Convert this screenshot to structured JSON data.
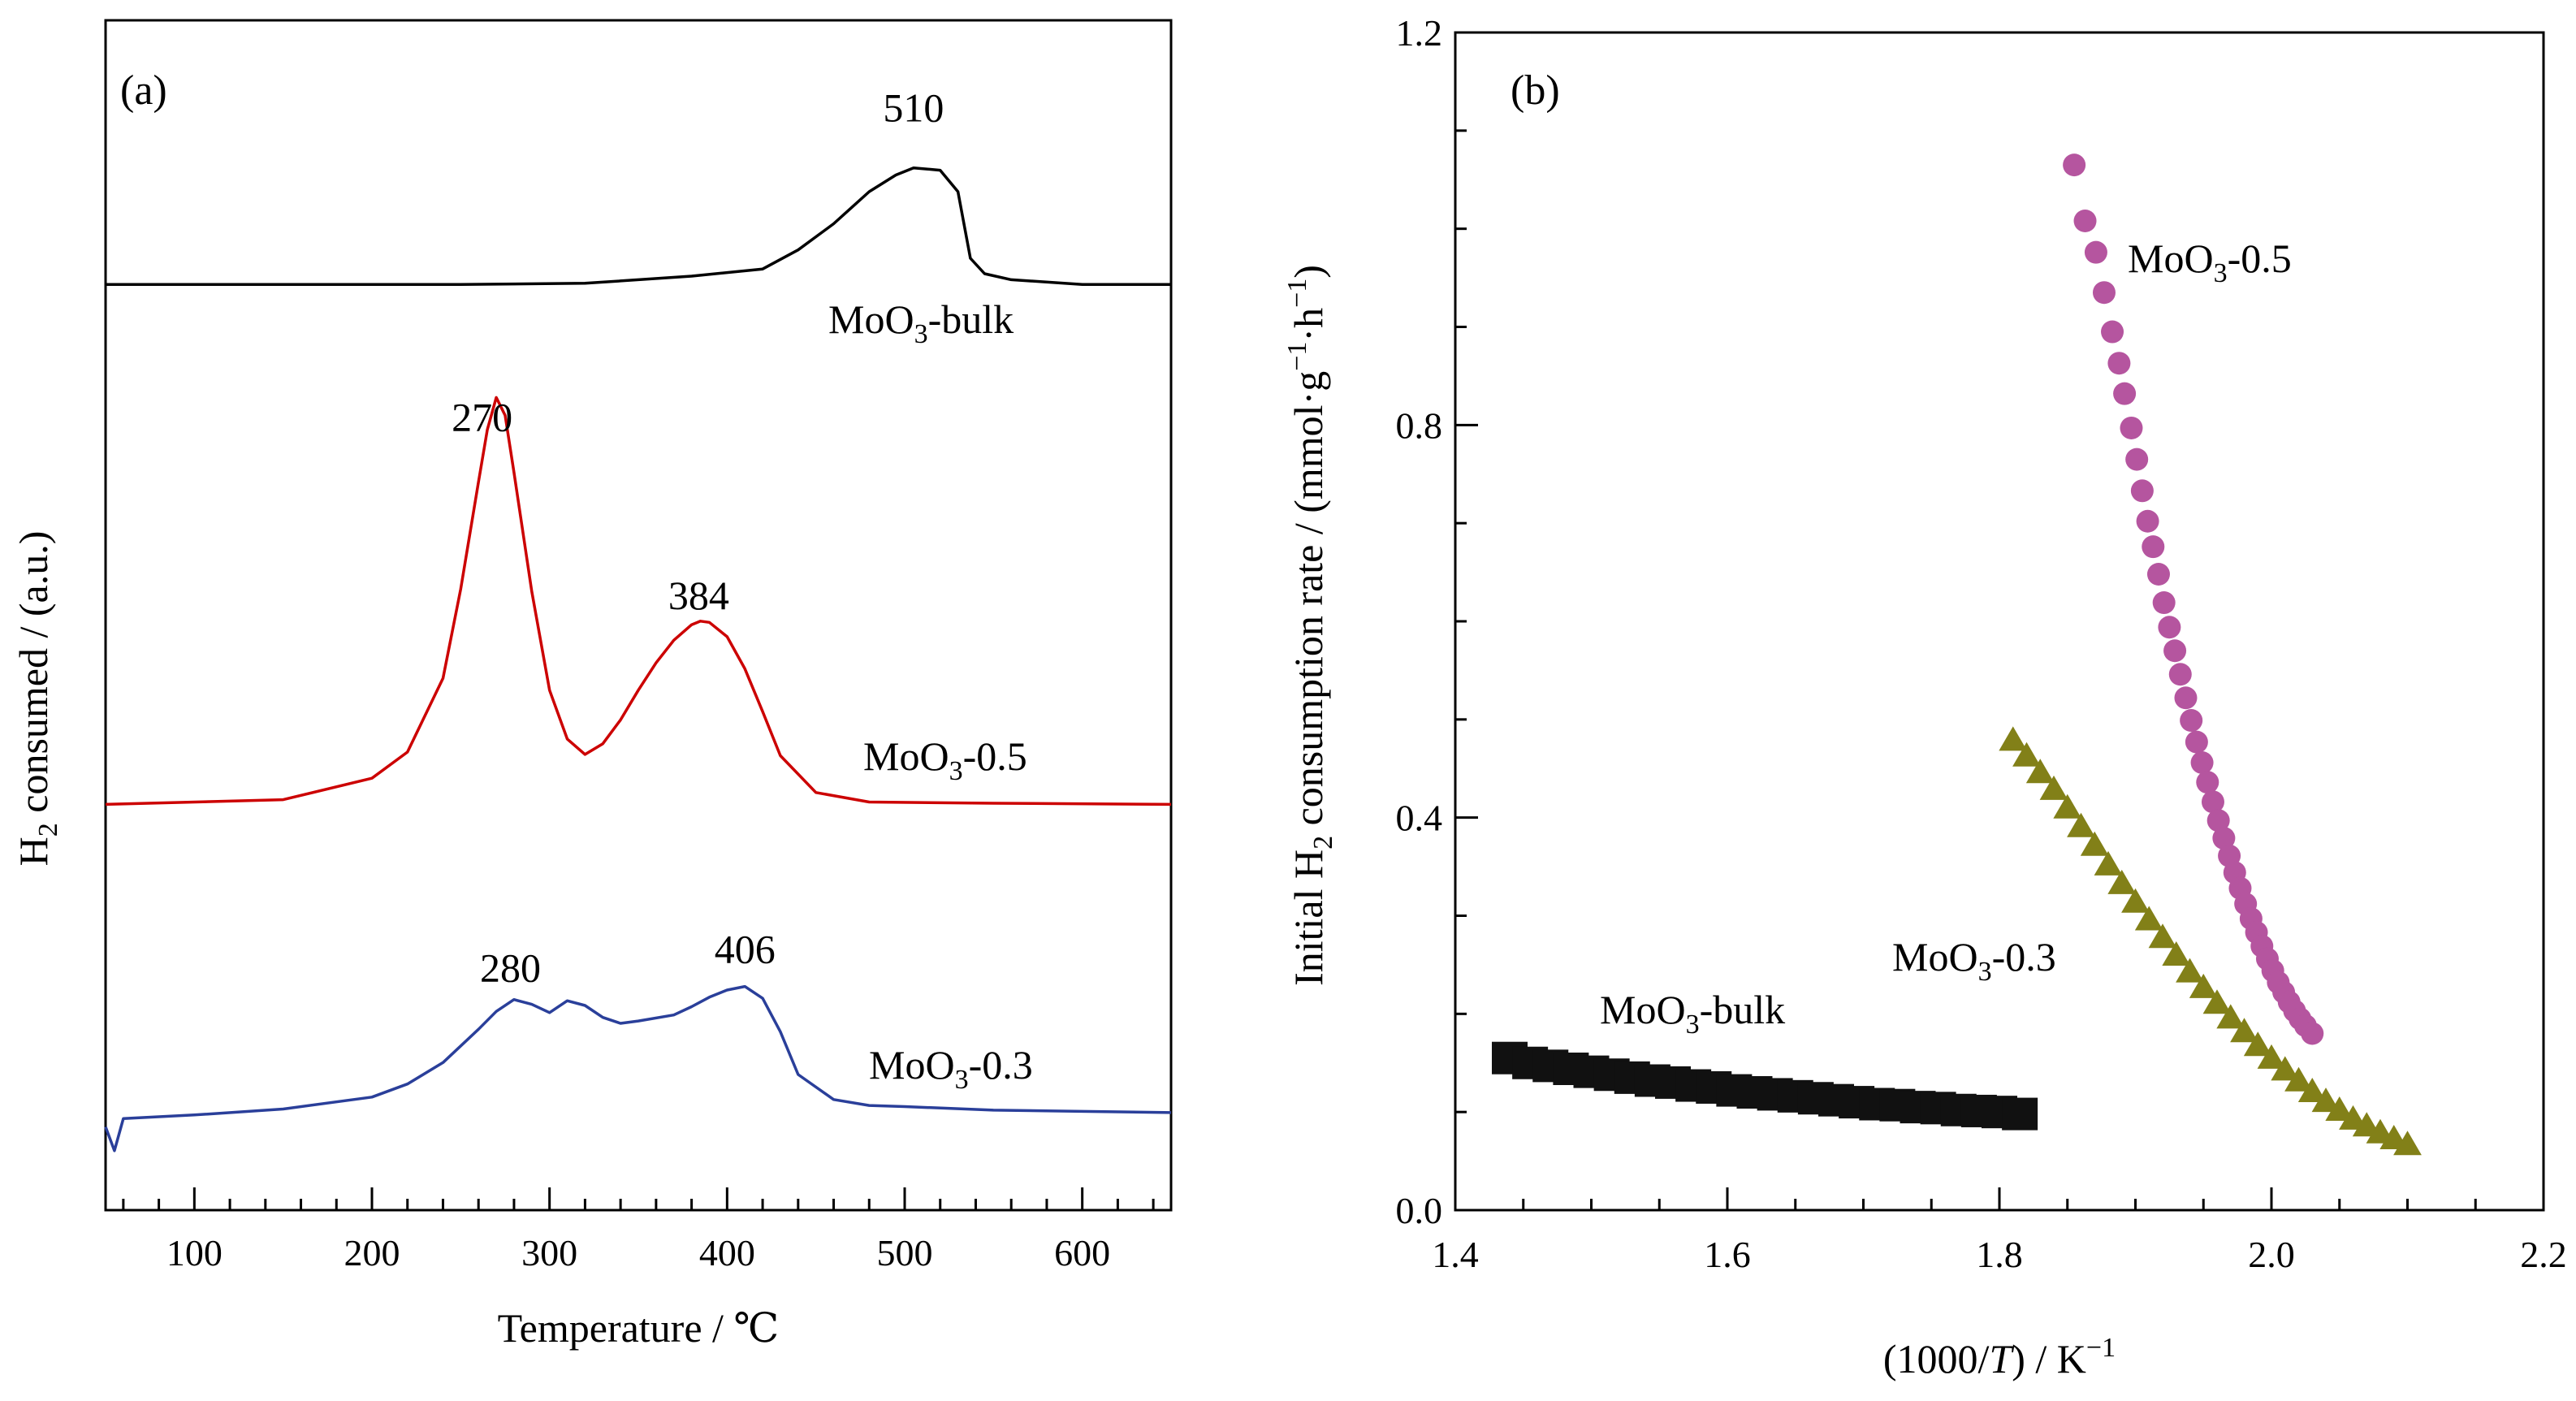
{
  "colors": {
    "bulk": "#000000",
    "p05": "#cc0000",
    "p03": "#2a3f9a",
    "p05_marker": "#b5559f",
    "p03_marker": "#828018",
    "bulk_marker": "#111111"
  },
  "chart_data": [
    {
      "type": "line",
      "panel": "(a)",
      "xlabel": "Temperature / ℃",
      "ylabel_main": "H",
      "ylabel_sub": "2",
      "ylabel_rest": " consumed / (a.u.)",
      "xlim": [
        50,
        650
      ],
      "x_ticks": [
        100,
        200,
        300,
        400,
        500,
        600
      ],
      "x_tick_labels": [
        "100",
        "200",
        "300",
        "400",
        "500",
        "600"
      ],
      "ylim": [
        0,
        1
      ],
      "y_ticks_shown": false,
      "series": [
        {
          "key": "bulk",
          "label_main": "MoO",
          "label_sub": "3",
          "label_rest": "-bulk",
          "baseline": 0.778,
          "x": [
            50,
            150,
            250,
            320,
            380,
            420,
            440,
            460,
            480,
            495,
            505,
            520,
            530,
            537,
            545,
            560,
            600,
            650
          ],
          "y": [
            0.778,
            0.778,
            0.778,
            0.779,
            0.785,
            0.791,
            0.807,
            0.829,
            0.856,
            0.87,
            0.876,
            0.874,
            0.856,
            0.8,
            0.787,
            0.782,
            0.778,
            0.778
          ]
        },
        {
          "key": "p05",
          "label_main": "MoO",
          "label_sub": "3",
          "label_rest": "-0.5",
          "baseline": 0.341,
          "x": [
            50,
            150,
            200,
            220,
            240,
            250,
            260,
            265,
            270,
            275,
            280,
            290,
            300,
            310,
            320,
            330,
            340,
            350,
            360,
            370,
            380,
            385,
            390,
            400,
            410,
            420,
            430,
            450,
            480,
            550,
            650
          ],
          "y": [
            0.341,
            0.345,
            0.363,
            0.385,
            0.447,
            0.522,
            0.612,
            0.656,
            0.683,
            0.668,
            0.62,
            0.52,
            0.437,
            0.396,
            0.383,
            0.392,
            0.412,
            0.437,
            0.46,
            0.479,
            0.492,
            0.495,
            0.494,
            0.482,
            0.455,
            0.419,
            0.382,
            0.351,
            0.343,
            0.342,
            0.341
          ]
        },
        {
          "key": "p03",
          "label_main": "MoO",
          "label_sub": "3",
          "label_rest": "-0.3",
          "baseline": 0.079,
          "x": [
            50,
            55,
            60,
            100,
            150,
            200,
            220,
            240,
            260,
            270,
            280,
            290,
            300,
            310,
            320,
            330,
            340,
            350,
            370,
            380,
            390,
            400,
            410,
            420,
            430,
            440,
            460,
            480,
            500,
            550,
            600,
            650
          ],
          "y": [
            0.07,
            0.05,
            0.077,
            0.08,
            0.085,
            0.095,
            0.106,
            0.124,
            0.152,
            0.167,
            0.177,
            0.173,
            0.166,
            0.176,
            0.172,
            0.162,
            0.157,
            0.159,
            0.164,
            0.171,
            0.179,
            0.185,
            0.188,
            0.178,
            0.15,
            0.114,
            0.093,
            0.088,
            0.087,
            0.084,
            0.083,
            0.082
          ]
        }
      ],
      "annotations": [
        {
          "text": "510",
          "x": 505,
          "y": 0.915
        },
        {
          "text": "270",
          "x": 262,
          "y": 0.655
        },
        {
          "text": "384",
          "x": 384,
          "y": 0.505
        },
        {
          "text": "280",
          "x": 278,
          "y": 0.192
        },
        {
          "text": "406",
          "x": 410,
          "y": 0.208
        }
      ]
    },
    {
      "type": "scatter",
      "panel": "(b)",
      "xlabel_pre": "(1000/",
      "xlabel_italic": "T",
      "xlabel_post": ") / K",
      "xlabel_sup": "−1",
      "ylabel_a": "Initial H",
      "ylabel_a_sub": "2",
      "ylabel_b": " consumption rate / (mmol·g",
      "ylabel_b_sup": "−1",
      "ylabel_c": "·h",
      "ylabel_c_sup": "−1",
      "ylabel_d": ")",
      "xlim": [
        1.4,
        2.2
      ],
      "ylim": [
        0,
        1.2
      ],
      "x_ticks": [
        1.4,
        1.6,
        1.8,
        2.0,
        2.2
      ],
      "x_tick_labels": [
        "1.4",
        "1.6",
        "1.8",
        "2.0",
        "2.2"
      ],
      "y_ticks": [
        0.0,
        0.4,
        0.8,
        1.2
      ],
      "y_tick_labels": [
        "0.0",
        "0.4",
        "0.8",
        "1.2"
      ],
      "series": [
        {
          "key": "p05",
          "marker": "circle",
          "label_main": "MoO",
          "label_sub": "3",
          "label_rest": "-0.5",
          "x": [
            1.855,
            1.863,
            1.871,
            1.877,
            1.883,
            1.888,
            1.892,
            1.897,
            1.901,
            1.905,
            1.909,
            1.913,
            1.917,
            1.921,
            1.925,
            1.929,
            1.933,
            1.937,
            1.941,
            1.945,
            1.949,
            1.953,
            1.957,
            1.961,
            1.965,
            1.969,
            1.973,
            1.977,
            1.981,
            1.985,
            1.989,
            1.993,
            1.997,
            2.001,
            2.005,
            2.009,
            2.013,
            2.017,
            2.021,
            2.025,
            2.03
          ],
          "y": [
            1.065,
            1.008,
            0.976,
            0.935,
            0.895,
            0.863,
            0.832,
            0.797,
            0.765,
            0.733,
            0.702,
            0.676,
            0.648,
            0.619,
            0.594,
            0.57,
            0.546,
            0.522,
            0.499,
            0.477,
            0.456,
            0.436,
            0.416,
            0.397,
            0.379,
            0.361,
            0.344,
            0.328,
            0.312,
            0.297,
            0.283,
            0.269,
            0.256,
            0.244,
            0.232,
            0.222,
            0.212,
            0.203,
            0.195,
            0.188,
            0.18
          ]
        },
        {
          "key": "p03",
          "marker": "triangle",
          "label_main": "MoO",
          "label_sub": "3",
          "label_rest": "-0.3",
          "x": [
            1.81,
            1.82,
            1.83,
            1.84,
            1.85,
            1.86,
            1.87,
            1.88,
            1.89,
            1.9,
            1.91,
            1.92,
            1.93,
            1.94,
            1.95,
            1.96,
            1.97,
            1.98,
            1.99,
            2.0,
            2.01,
            2.02,
            2.03,
            2.04,
            2.05,
            2.06,
            2.07,
            2.08,
            2.09,
            2.1
          ],
          "y": [
            0.478,
            0.462,
            0.445,
            0.428,
            0.409,
            0.39,
            0.371,
            0.351,
            0.332,
            0.313,
            0.295,
            0.277,
            0.259,
            0.242,
            0.226,
            0.21,
            0.195,
            0.181,
            0.167,
            0.154,
            0.142,
            0.131,
            0.12,
            0.11,
            0.101,
            0.092,
            0.085,
            0.078,
            0.072,
            0.066
          ]
        },
        {
          "key": "bulk",
          "marker": "square",
          "label_main": "MoO",
          "label_sub": "3",
          "label_rest": "-bulk",
          "x": [
            1.44,
            1.455,
            1.47,
            1.485,
            1.5,
            1.515,
            1.53,
            1.545,
            1.56,
            1.575,
            1.59,
            1.605,
            1.62,
            1.635,
            1.65,
            1.665,
            1.68,
            1.695,
            1.71,
            1.725,
            1.74,
            1.755,
            1.77,
            1.785,
            1.8,
            1.815
          ],
          "y": [
            0.155,
            0.15,
            0.147,
            0.144,
            0.141,
            0.138,
            0.135,
            0.132,
            0.13,
            0.127,
            0.125,
            0.122,
            0.12,
            0.118,
            0.116,
            0.114,
            0.112,
            0.11,
            0.108,
            0.107,
            0.105,
            0.104,
            0.102,
            0.101,
            0.1,
            0.098
          ]
        }
      ]
    }
  ]
}
